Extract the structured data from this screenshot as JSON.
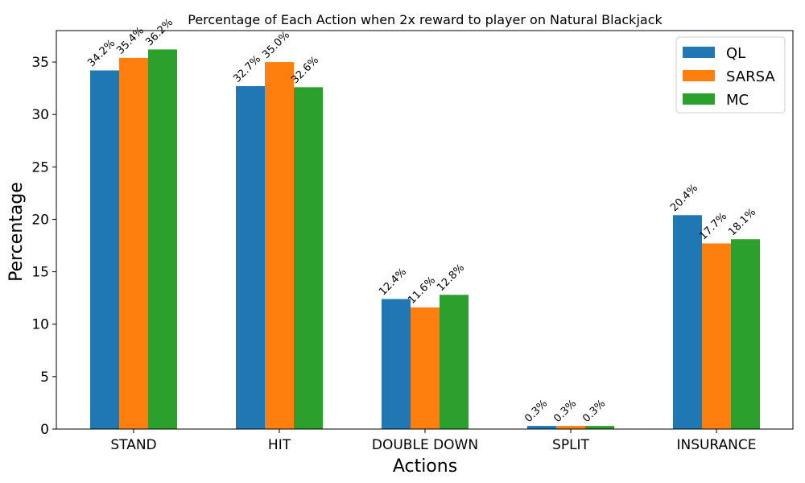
{
  "chart_data": {
    "type": "bar",
    "title": "Percentage of Each Action when 2x reward to player on Natural Blackjack",
    "xlabel": "Actions",
    "ylabel": "Percentage",
    "categories": [
      "STAND",
      "HIT",
      "DOUBLE DOWN",
      "SPLIT",
      "INSURANCE"
    ],
    "ylim": [
      0,
      38
    ],
    "yticks": [
      0,
      5,
      10,
      15,
      20,
      25,
      30,
      35
    ],
    "grid": false,
    "legend_position": "top-right",
    "series": [
      {
        "name": "QL",
        "color": "#1f77b4",
        "values": [
          34.2,
          32.7,
          12.4,
          0.3,
          20.4
        ],
        "labels": [
          "34.2%",
          "32.7%",
          "12.4%",
          "0.3%",
          "20.4%"
        ]
      },
      {
        "name": "SARSA",
        "color": "#ff7f0e",
        "values": [
          35.4,
          35.0,
          11.6,
          0.3,
          17.7
        ],
        "labels": [
          "35.4%",
          "35.0%",
          "11.6%",
          "0.3%",
          "17.7%"
        ]
      },
      {
        "name": "MC",
        "color": "#2ca02c",
        "values": [
          36.2,
          32.6,
          12.8,
          0.3,
          18.1
        ],
        "labels": [
          "36.2%",
          "32.6%",
          "12.8%",
          "0.3%",
          "18.1%"
        ]
      }
    ]
  }
}
